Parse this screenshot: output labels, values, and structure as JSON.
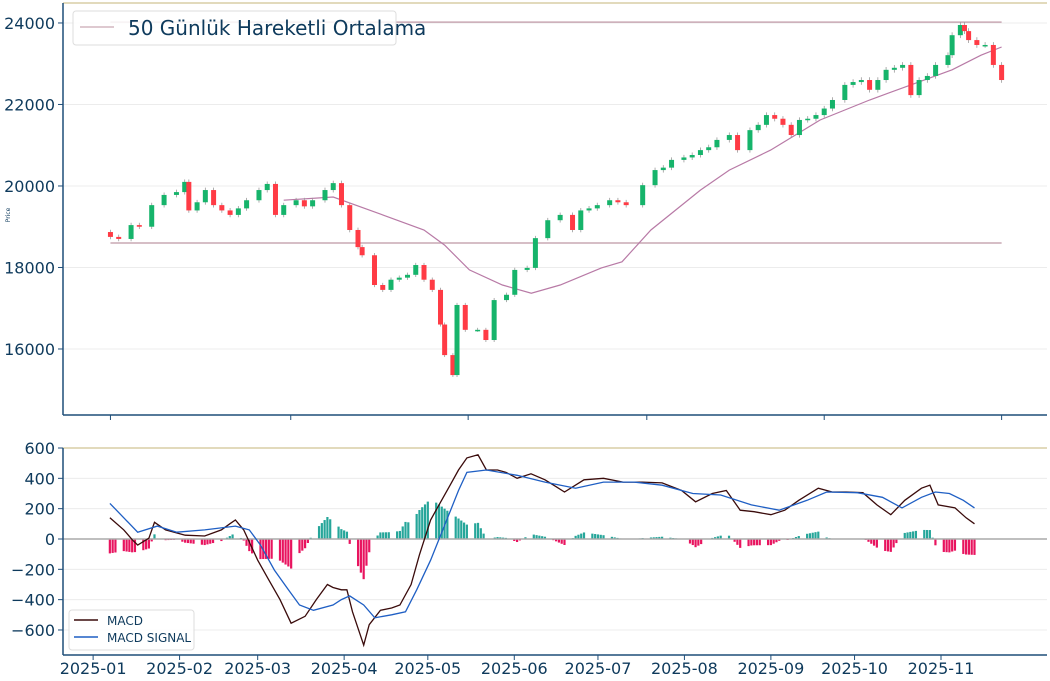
{
  "colors": {
    "up": "#16b46b",
    "down": "#ff3b45",
    "ma": "#b87aa6",
    "level": "#c9a9b4",
    "macd": "#3a0b0b",
    "signal": "#1f5fc4",
    "hist_pos": "#26a69a",
    "hist_neg": "#e8145f",
    "spine": "#1f4e79",
    "top_spine": "#d9cda6"
  },
  "chart_data": [
    {
      "type": "candlestick",
      "title": "",
      "ylabel": "Price",
      "ylim": [
        14380,
        24490
      ],
      "yticks": [
        "16000",
        "18000",
        "20000",
        "22000",
        "24000"
      ],
      "ytick_values": [
        16000,
        18000,
        20000,
        22000,
        24000
      ],
      "x_unit": "trading-day index (2025-01-06 .. 2025-11-13)",
      "xlim": [
        -11.5,
        227
      ],
      "xtick_values": [
        0,
        43.7,
        86.7,
        130,
        173,
        216
      ],
      "legend": {
        "label": "50 Günlük Hareketli Ortalama",
        "placement": "top-left"
      },
      "levels": [
        24020,
        18600
      ],
      "candles_close": [
        [
          0,
          18750
        ],
        [
          2,
          18700
        ],
        [
          5,
          19040
        ],
        [
          7,
          19000
        ],
        [
          10,
          19530
        ],
        [
          13,
          19780
        ],
        [
          16,
          19850
        ],
        [
          18,
          20100
        ],
        [
          19,
          19400
        ],
        [
          21,
          19600
        ],
        [
          23,
          19900
        ],
        [
          25,
          19530
        ],
        [
          27,
          19400
        ],
        [
          29,
          19290
        ],
        [
          31,
          19450
        ],
        [
          33,
          19650
        ],
        [
          36,
          19900
        ],
        [
          38,
          20050
        ],
        [
          40,
          19290
        ],
        [
          42,
          19530
        ],
        [
          45,
          19650
        ],
        [
          47,
          19500
        ],
        [
          49,
          19650
        ],
        [
          52,
          19900
        ],
        [
          54,
          20070
        ],
        [
          56,
          19530
        ],
        [
          58,
          18920
        ],
        [
          60,
          18500
        ],
        [
          61,
          18300
        ],
        [
          64,
          17570
        ],
        [
          66,
          17450
        ],
        [
          68,
          17700
        ],
        [
          70,
          17750
        ],
        [
          72,
          17820
        ],
        [
          74,
          18060
        ],
        [
          76,
          17700
        ],
        [
          78,
          17450
        ],
        [
          80,
          16600
        ],
        [
          81,
          15850
        ],
        [
          83,
          15360
        ],
        [
          84,
          17080
        ],
        [
          86,
          16470
        ],
        [
          89,
          16470
        ],
        [
          91,
          16220
        ],
        [
          93,
          17200
        ],
        [
          96,
          17330
        ],
        [
          98,
          17940
        ],
        [
          101,
          17990
        ],
        [
          103,
          18720
        ],
        [
          106,
          19160
        ],
        [
          109,
          19290
        ],
        [
          112,
          18920
        ],
        [
          114,
          19400
        ],
        [
          116,
          19450
        ],
        [
          118,
          19530
        ],
        [
          121,
          19650
        ],
        [
          123,
          19600
        ],
        [
          125,
          19530
        ],
        [
          129,
          20020
        ],
        [
          132,
          20390
        ],
        [
          134,
          20450
        ],
        [
          136,
          20640
        ],
        [
          139,
          20700
        ],
        [
          141,
          20760
        ],
        [
          143,
          20880
        ],
        [
          145,
          20950
        ],
        [
          147,
          21130
        ],
        [
          150,
          21250
        ],
        [
          152,
          20880
        ],
        [
          155,
          21370
        ],
        [
          157,
          21500
        ],
        [
          159,
          21740
        ],
        [
          161,
          21650
        ],
        [
          163,
          21500
        ],
        [
          165,
          21250
        ],
        [
          167,
          21620
        ],
        [
          169,
          21650
        ],
        [
          171,
          21740
        ],
        [
          173,
          21900
        ],
        [
          175,
          22110
        ],
        [
          178,
          22480
        ],
        [
          180,
          22550
        ],
        [
          182,
          22600
        ],
        [
          184,
          22360
        ],
        [
          186,
          22600
        ],
        [
          188,
          22850
        ],
        [
          190,
          22900
        ],
        [
          192,
          22970
        ],
        [
          194,
          22230
        ],
        [
          196,
          22600
        ],
        [
          198,
          22700
        ],
        [
          200,
          22970
        ],
        [
          203,
          23210
        ],
        [
          204,
          23700
        ],
        [
          206,
          23950
        ],
        [
          207,
          23800
        ],
        [
          208,
          23580
        ],
        [
          210,
          23460
        ],
        [
          212,
          23460
        ],
        [
          214,
          22970
        ],
        [
          216,
          22600
        ]
      ],
      "ma50": [
        [
          42,
          19650
        ],
        [
          54,
          19730
        ],
        [
          66,
          19290
        ],
        [
          76,
          18920
        ],
        [
          81,
          18550
        ],
        [
          87,
          17940
        ],
        [
          95,
          17570
        ],
        [
          102,
          17370
        ],
        [
          109,
          17570
        ],
        [
          119,
          17990
        ],
        [
          124,
          18140
        ],
        [
          131,
          18920
        ],
        [
          143,
          19900
        ],
        [
          150,
          20390
        ],
        [
          160,
          20880
        ],
        [
          172,
          21620
        ],
        [
          184,
          22110
        ],
        [
          194,
          22480
        ],
        [
          204,
          22850
        ],
        [
          211,
          23210
        ],
        [
          216,
          23410
        ]
      ]
    },
    {
      "type": "line",
      "title": "",
      "ylim": [
        -765,
        600
      ],
      "yticks": [
        "−600",
        "−400",
        "−200",
        "0",
        "200",
        "400",
        "600"
      ],
      "ytick_values": [
        -600,
        -400,
        -200,
        0,
        200,
        400,
        600
      ],
      "x_unit": "days since 2025-01-01",
      "xlim": [
        -10.8,
        342
      ],
      "xticks": [
        "2025-01",
        "2025-02",
        "2025-03",
        "2025-04",
        "2025-05",
        "2025-06",
        "2025-07",
        "2025-08",
        "2025-09",
        "2025-10",
        "2025-11"
      ],
      "xtick_values": [
        0,
        31,
        59,
        90,
        120,
        151,
        181,
        212,
        243,
        273,
        304
      ],
      "legend": {
        "placement": "lower-left",
        "entries": [
          "MACD",
          "MACD SIGNAL"
        ]
      },
      "series": [
        {
          "name": "MACD",
          "points": [
            [
              6,
              140
            ],
            [
              11,
              60
            ],
            [
              14,
              -5
            ],
            [
              16,
              -40
            ],
            [
              20,
              5
            ],
            [
              22,
              110
            ],
            [
              26,
              60
            ],
            [
              33,
              25
            ],
            [
              40,
              20
            ],
            [
              46,
              60
            ],
            [
              49,
              100
            ],
            [
              51,
              125
            ],
            [
              54,
              60
            ],
            [
              59,
              -140
            ],
            [
              63,
              -270
            ],
            [
              67,
              -400
            ],
            [
              71,
              -555
            ],
            [
              76,
              -510
            ],
            [
              80,
              -400
            ],
            [
              84,
              -300
            ],
            [
              86,
              -320
            ],
            [
              89,
              -335
            ],
            [
              91,
              -335
            ],
            [
              93,
              -480
            ],
            [
              97,
              -700
            ],
            [
              99,
              -565
            ],
            [
              103,
              -470
            ],
            [
              107,
              -455
            ],
            [
              110,
              -435
            ],
            [
              114,
              -300
            ],
            [
              117,
              -105
            ],
            [
              121,
              125
            ],
            [
              124,
              225
            ],
            [
              128,
              355
            ],
            [
              131,
              455
            ],
            [
              134,
              535
            ],
            [
              138,
              555
            ],
            [
              141,
              455
            ],
            [
              145,
              455
            ],
            [
              148,
              440
            ],
            [
              152,
              400
            ],
            [
              157,
              430
            ],
            [
              162,
              390
            ],
            [
              166,
              345
            ],
            [
              169,
              310
            ],
            [
              176,
              390
            ],
            [
              183,
              400
            ],
            [
              190,
              375
            ],
            [
              197,
              375
            ],
            [
              204,
              370
            ],
            [
              211,
              320
            ],
            [
              216,
              245
            ],
            [
              222,
              300
            ],
            [
              227,
              320
            ],
            [
              232,
              190
            ],
            [
              237,
              180
            ],
            [
              243,
              160
            ],
            [
              248,
              190
            ],
            [
              253,
              255
            ],
            [
              260,
              335
            ],
            [
              265,
              310
            ],
            [
              270,
              310
            ],
            [
              276,
              305
            ],
            [
              281,
              225
            ],
            [
              286,
              160
            ],
            [
              291,
              255
            ],
            [
              297,
              335
            ],
            [
              300,
              355
            ],
            [
              303,
              225
            ],
            [
              309,
              205
            ],
            [
              313,
              140
            ],
            [
              316,
              100
            ]
          ]
        },
        {
          "name": "MACD SIGNAL",
          "points": [
            [
              6,
              235
            ],
            [
              11,
              140
            ],
            [
              16,
              45
            ],
            [
              23,
              85
            ],
            [
              30,
              45
            ],
            [
              40,
              60
            ],
            [
              51,
              85
            ],
            [
              56,
              60
            ],
            [
              60,
              -40
            ],
            [
              65,
              -205
            ],
            [
              70,
              -335
            ],
            [
              74,
              -435
            ],
            [
              79,
              -470
            ],
            [
              86,
              -435
            ],
            [
              89,
              -400
            ],
            [
              92,
              -375
            ],
            [
              97,
              -435
            ],
            [
              101,
              -520
            ],
            [
              107,
              -500
            ],
            [
              112,
              -480
            ],
            [
              116,
              -335
            ],
            [
              121,
              -140
            ],
            [
              126,
              90
            ],
            [
              131,
              320
            ],
            [
              134,
              440
            ],
            [
              141,
              455
            ],
            [
              152,
              420
            ],
            [
              162,
              375
            ],
            [
              173,
              335
            ],
            [
              183,
              375
            ],
            [
              194,
              375
            ],
            [
              204,
              355
            ],
            [
              215,
              300
            ],
            [
              225,
              290
            ],
            [
              236,
              225
            ],
            [
              246,
              190
            ],
            [
              256,
              255
            ],
            [
              263,
              310
            ],
            [
              274,
              305
            ],
            [
              283,
              275
            ],
            [
              290,
              205
            ],
            [
              297,
              275
            ],
            [
              302,
              310
            ],
            [
              307,
              300
            ],
            [
              312,
              255
            ],
            [
              316,
              205
            ]
          ]
        }
      ]
    }
  ]
}
